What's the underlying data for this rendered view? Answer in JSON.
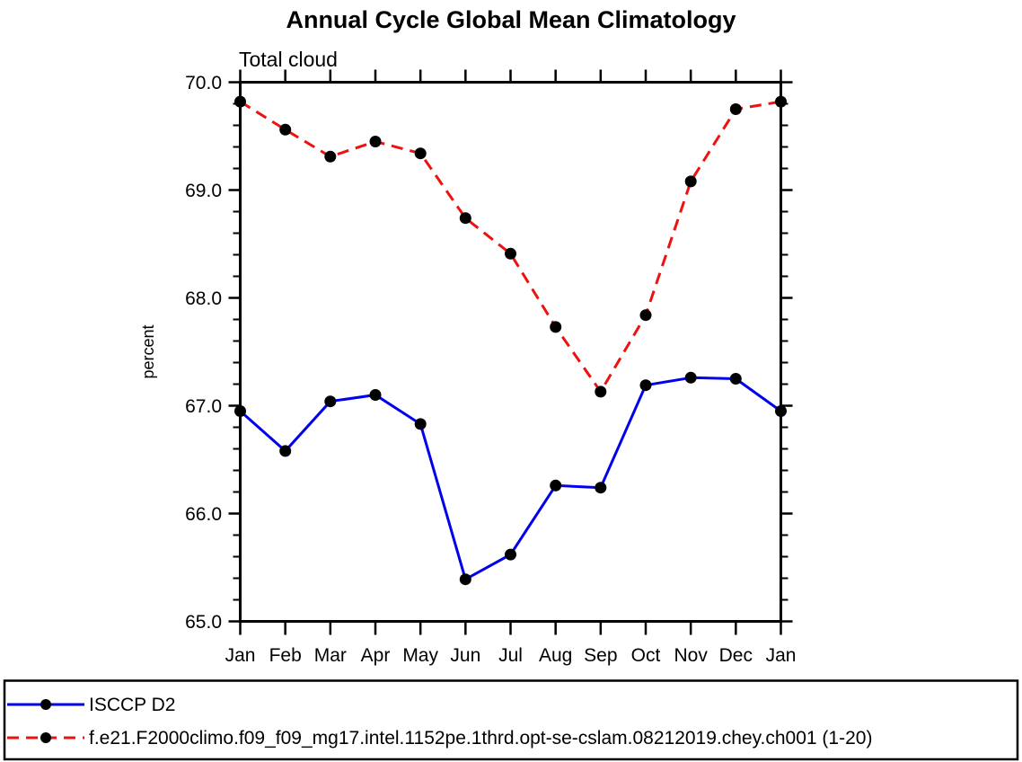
{
  "chart_data": {
    "type": "line",
    "title": "Annual Cycle Global Mean Climatology",
    "subtitle": "Total cloud",
    "xlabel": "",
    "ylabel": "percent",
    "categories": [
      "Jan",
      "Feb",
      "Mar",
      "Apr",
      "May",
      "Jun",
      "Jul",
      "Aug",
      "Sep",
      "Oct",
      "Nov",
      "Dec",
      "Jan"
    ],
    "ylim": [
      65.0,
      70.0
    ],
    "ytick_labels": [
      "65.0",
      "66.0",
      "67.0",
      "68.0",
      "69.0",
      "70.0"
    ],
    "ytick_major_step": 1.0,
    "ytick_minor_step": 0.2,
    "grid": false,
    "legend_position": "bottom-boxed",
    "marker": {
      "shape": "filled-circle",
      "color": "#000000"
    },
    "axis_color": "#000000",
    "background_color": "#ffffff",
    "series": [
      {
        "name": "ISCCP D2",
        "color": "#0000ee",
        "line_style": "solid",
        "values": [
          66.95,
          66.58,
          67.04,
          67.1,
          66.83,
          65.39,
          65.62,
          66.26,
          66.24,
          67.19,
          67.26,
          67.25,
          66.95
        ]
      },
      {
        "name": "f.e21.F2000climo.f09_f09_mg17.intel.1152pe.1thrd.opt-se-cslam.08212019.chey.ch001 (1-20)",
        "color": "#ee1111",
        "line_style": "dashed",
        "values": [
          69.82,
          69.56,
          69.31,
          69.45,
          69.34,
          68.74,
          68.41,
          67.73,
          67.13,
          67.84,
          69.08,
          69.75,
          69.82
        ]
      }
    ]
  }
}
